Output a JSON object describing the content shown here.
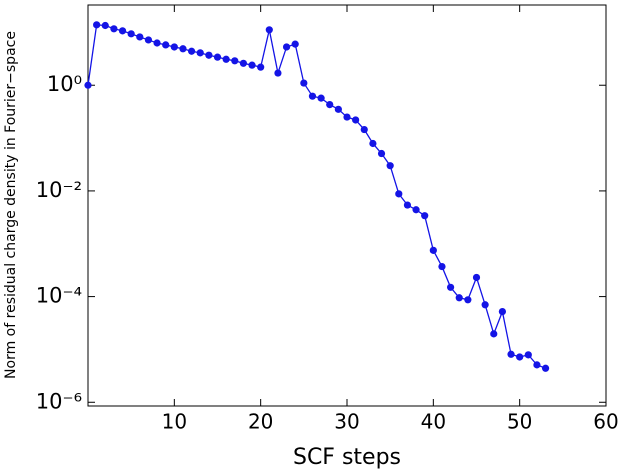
{
  "chart_data": {
    "type": "line",
    "log_y": true,
    "grid": false,
    "xlabel": "SCF steps",
    "ylabel": "Norm of residual charge density in Fourier−space",
    "xlim": [
      0,
      60
    ],
    "xticks": [
      10,
      20,
      30,
      40,
      50,
      60
    ],
    "ylim": [
      8.5e-07,
      33
    ],
    "yticks": [
      {
        "value": 1,
        "label": "10⁰"
      },
      {
        "value": 0.01,
        "label": "10⁻²"
      },
      {
        "value": 0.0001,
        "label": "10⁻⁴"
      },
      {
        "value": 1e-06,
        "label": "10⁻⁶"
      }
    ],
    "x": [
      0,
      1,
      2,
      3,
      4,
      5,
      6,
      7,
      8,
      9,
      10,
      11,
      12,
      13,
      14,
      15,
      16,
      17,
      18,
      19,
      20,
      21,
      22,
      23,
      24,
      25,
      26,
      27,
      28,
      29,
      30,
      31,
      32,
      33,
      34,
      35,
      36,
      37,
      38,
      39,
      40,
      41,
      42,
      43,
      44,
      45,
      46,
      47,
      48,
      49,
      50,
      51,
      52,
      53
    ],
    "series": [
      {
        "color": "#1414e6",
        "values": [
          1,
          13.9,
          13.5,
          11.7,
          10.7,
          9.4,
          8.2,
          7.2,
          6.3,
          5.8,
          5.3,
          4.9,
          4.4,
          4.1,
          3.7,
          3.4,
          3.1,
          2.9,
          2.6,
          2.4,
          2.2,
          11.2,
          1.7,
          5.3,
          6.0,
          1.1,
          0.62,
          0.57,
          0.43,
          0.35,
          0.25,
          0.22,
          0.145,
          0.079,
          0.051,
          0.03,
          0.0088,
          0.0054,
          0.0044,
          0.0034,
          0.00075,
          0.00037,
          0.00015,
          9.5e-05,
          8.7e-05,
          0.00023,
          7e-05,
          1.97e-05,
          5.2e-05,
          8.1e-06,
          7.2e-06,
          7.9e-06,
          5.1e-06,
          4.4e-06
        ]
      }
    ]
  }
}
